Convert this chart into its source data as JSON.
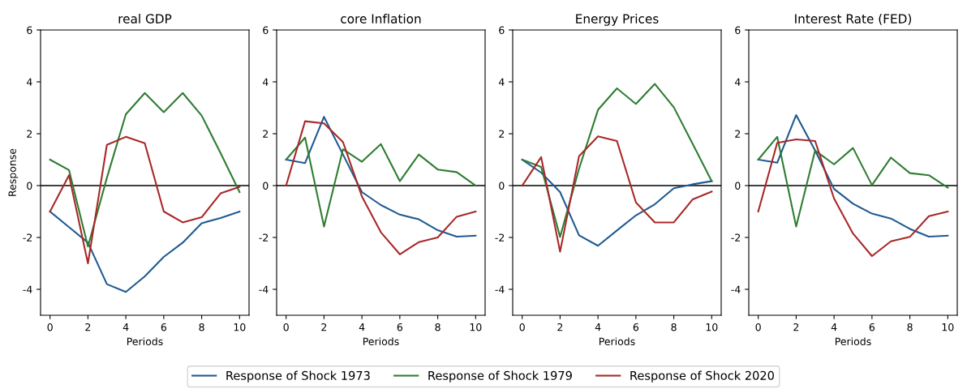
{
  "chart_data": [
    {
      "type": "line",
      "title": "real GDP",
      "xlabel": "Periods",
      "ylabel": "Response",
      "x": [
        0,
        1,
        2,
        3,
        4,
        5,
        6,
        7,
        8,
        9,
        10
      ],
      "xlim": [
        -0.5,
        10.5
      ],
      "xticks": [
        0,
        2,
        4,
        6,
        8,
        10
      ],
      "ylim": [
        -5,
        6
      ],
      "yticks": [
        -4,
        -2,
        0,
        2,
        4,
        6
      ],
      "grid": false,
      "legend": "bottom",
      "ref_lines": [
        {
          "axis": "y",
          "value": 0,
          "color": "#000000"
        }
      ],
      "series": [
        {
          "name": "Response of Shock 1973",
          "color": "#1f5a91",
          "values": [
            -1.0,
            -1.6,
            -2.2,
            -3.8,
            -4.1,
            -3.5,
            -2.75,
            -2.2,
            -1.45,
            -1.25,
            -1.0
          ]
        },
        {
          "name": "Response of Shock 1979",
          "color": "#2e7d32",
          "values": [
            1.0,
            0.6,
            -2.35,
            0.3,
            2.75,
            3.57,
            2.83,
            3.57,
            2.7,
            1.25,
            -0.25
          ]
        },
        {
          "name": "Response of Shock 2020",
          "color": "#a82828",
          "values": [
            -1.0,
            0.4,
            -3.0,
            1.57,
            1.88,
            1.63,
            -1.0,
            -1.42,
            -1.22,
            -0.3,
            -0.05
          ]
        }
      ]
    },
    {
      "type": "line",
      "title": "core Inflation",
      "xlabel": "Periods",
      "x": [
        0,
        1,
        2,
        3,
        4,
        5,
        6,
        7,
        8,
        9,
        10
      ],
      "xlim": [
        -0.5,
        10.5
      ],
      "xticks": [
        0,
        2,
        4,
        6,
        8,
        10
      ],
      "ylim": [
        -5,
        6
      ],
      "yticks": [
        -4,
        -2,
        0,
        2,
        4,
        6
      ],
      "grid": false,
      "ref_lines": [
        {
          "axis": "y",
          "value": 0,
          "color": "#000000"
        }
      ],
      "series": [
        {
          "color": "#1f5a91",
          "values": [
            1.0,
            0.87,
            2.65,
            1.2,
            -0.25,
            -0.75,
            -1.12,
            -1.3,
            -1.72,
            -1.97,
            -1.93
          ]
        },
        {
          "color": "#2e7d32",
          "values": [
            1.0,
            1.85,
            -1.58,
            1.4,
            0.92,
            1.6,
            0.17,
            1.2,
            0.62,
            0.52,
            0.0
          ]
        },
        {
          "color": "#a82828",
          "values": [
            0.0,
            2.48,
            2.4,
            1.68,
            -0.42,
            -1.8,
            -2.65,
            -2.18,
            -2.0,
            -1.2,
            -1.0
          ]
        }
      ]
    },
    {
      "type": "line",
      "title": "Energy Prices",
      "xlabel": "Periods",
      "x": [
        0,
        1,
        2,
        3,
        4,
        5,
        6,
        7,
        8,
        9,
        10
      ],
      "xlim": [
        -0.5,
        10.5
      ],
      "xticks": [
        0,
        2,
        4,
        6,
        8,
        10
      ],
      "ylim": [
        -5,
        6
      ],
      "yticks": [
        -4,
        -2,
        0,
        2,
        4,
        6
      ],
      "grid": false,
      "ref_lines": [
        {
          "axis": "y",
          "value": 0,
          "color": "#000000"
        }
      ],
      "series": [
        {
          "color": "#1f5a91",
          "values": [
            1.0,
            0.5,
            -0.25,
            -1.92,
            -2.32,
            -1.73,
            -1.15,
            -0.72,
            -0.1,
            0.05,
            0.17
          ]
        },
        {
          "color": "#2e7d32",
          "values": [
            1.0,
            0.72,
            -1.98,
            0.65,
            2.92,
            3.75,
            3.15,
            3.92,
            3.02,
            1.6,
            0.17
          ]
        },
        {
          "color": "#a82828",
          "values": [
            0.0,
            1.1,
            -2.55,
            1.13,
            1.9,
            1.72,
            -0.65,
            -1.42,
            -1.42,
            -0.53,
            -0.23
          ]
        }
      ]
    },
    {
      "type": "line",
      "title": "Interest Rate (FED)",
      "xlabel": "Periods",
      "x": [
        0,
        1,
        2,
        3,
        4,
        5,
        6,
        7,
        8,
        9,
        10
      ],
      "xlim": [
        -0.5,
        10.5
      ],
      "xticks": [
        0,
        2,
        4,
        6,
        8,
        10
      ],
      "ylim": [
        -5,
        6
      ],
      "yticks": [
        -4,
        -2,
        0,
        2,
        4,
        6
      ],
      "grid": false,
      "ref_lines": [
        {
          "axis": "y",
          "value": 0,
          "color": "#000000"
        }
      ],
      "series": [
        {
          "color": "#1f5a91",
          "values": [
            1.0,
            0.88,
            2.72,
            1.35,
            -0.13,
            -0.7,
            -1.08,
            -1.27,
            -1.67,
            -1.97,
            -1.93
          ]
        },
        {
          "color": "#2e7d32",
          "values": [
            1.0,
            1.88,
            -1.58,
            1.35,
            0.82,
            1.45,
            0.02,
            1.08,
            0.48,
            0.4,
            -0.08
          ]
        },
        {
          "color": "#a82828",
          "values": [
            -1.0,
            1.65,
            1.78,
            1.72,
            -0.5,
            -1.85,
            -2.72,
            -2.15,
            -1.98,
            -1.18,
            -1.0
          ]
        }
      ]
    }
  ]
}
